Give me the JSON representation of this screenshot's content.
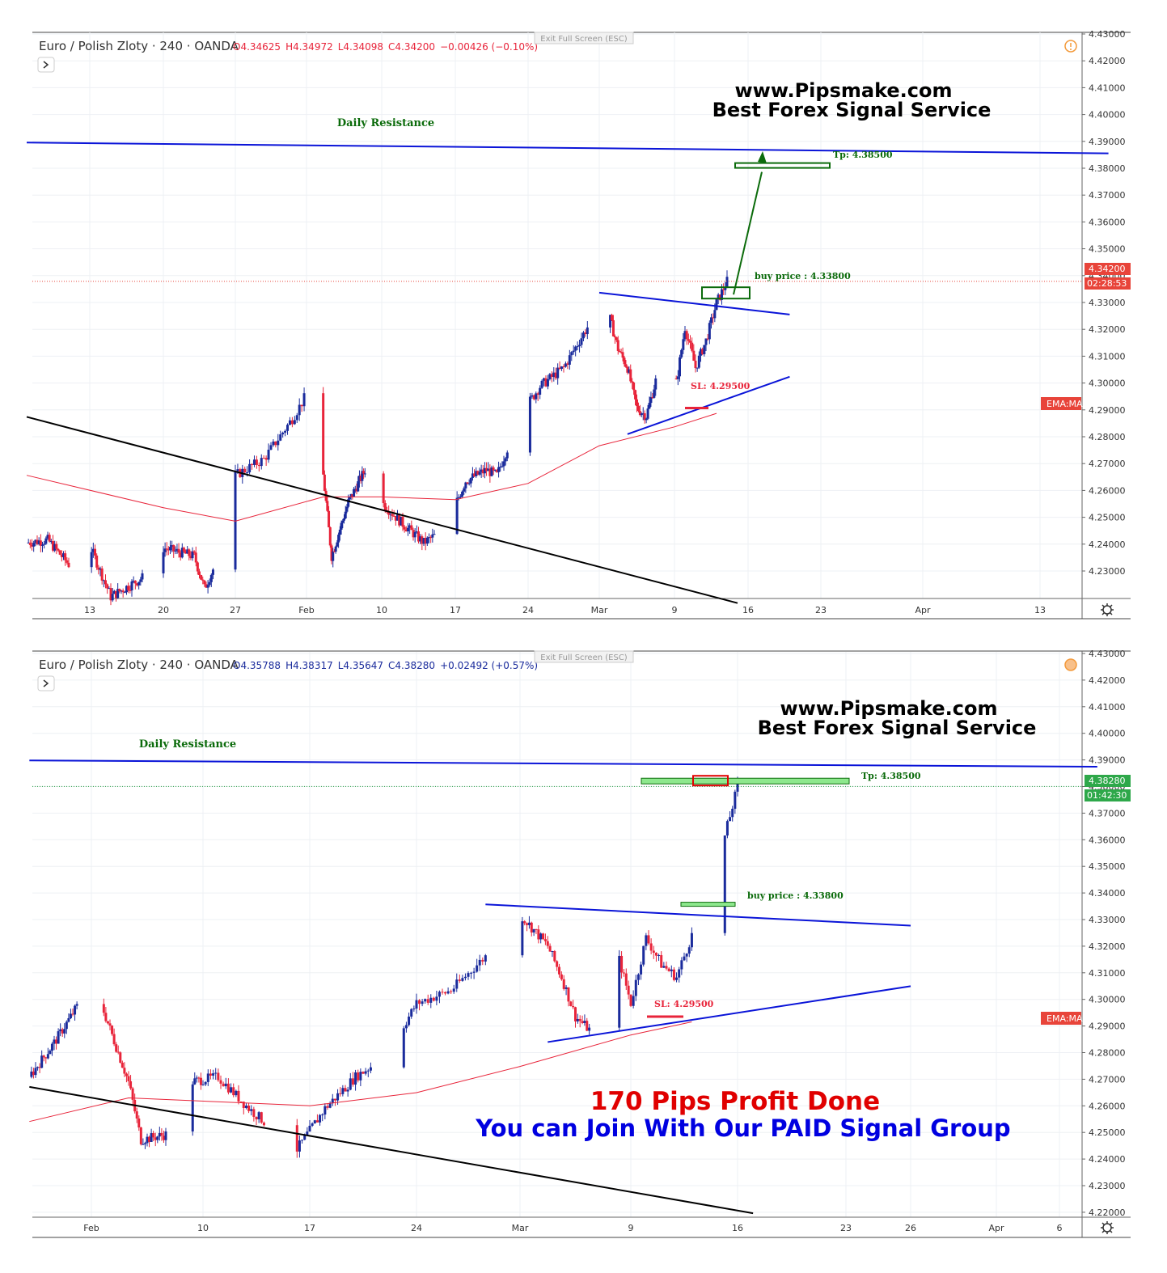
{
  "chart_data": [
    {
      "type": "candlestick",
      "symbol": "Euro / Polish Zloty · 240 · OANDA",
      "ohlc_text": {
        "open": "O4.34625",
        "high": "H4.34972",
        "low": "L4.34098",
        "close": "C4.34200",
        "change": "−0.00426 (−0.10%)"
      },
      "exit_fullscreen_label": "Exit Full Screen (ESC)",
      "brand_line1": "www.Pipsmake.com",
      "brand_line2": "Best Forex Signal Service",
      "daily_resistance_label": "Daily Resistance",
      "tp_label": "Tp: 4.38500",
      "buy_label": "buy price : 4.33800",
      "sl_label": "SL: 4.29500",
      "current_price": "4.34200",
      "countdown": "02:28:53",
      "ema_label": "EMA:MA",
      "y_axis_ticks": [
        "4.43000",
        "4.42000",
        "4.41000",
        "4.40000",
        "4.39000",
        "4.38000",
        "4.37000",
        "4.36000",
        "4.35000",
        "4.34000",
        "4.33000",
        "4.32000",
        "4.31000",
        "4.30000",
        "4.29000",
        "4.28000",
        "4.27000",
        "4.26000",
        "4.25000",
        "4.24000",
        "4.23000"
      ],
      "x_axis_ticks": [
        "13",
        "20",
        "27",
        "Feb",
        "10",
        "17",
        "24",
        "Mar",
        "9",
        "16",
        "23",
        "Apr",
        "13"
      ],
      "ylim": [
        4.2243,
        4.4338
      ],
      "price_path": [
        {
          "date": "Jan 7",
          "price": 4.245
        },
        {
          "date": "Jan 9",
          "price": 4.246
        },
        {
          "date": "Jan 11",
          "price": 4.237
        },
        {
          "date": "Jan 13",
          "price": 4.244
        },
        {
          "date": "Jan 15",
          "price": 4.225
        },
        {
          "date": "Jan 18",
          "price": 4.232
        },
        {
          "date": "Jan 20",
          "price": 4.243
        },
        {
          "date": "Jan 23",
          "price": 4.24
        },
        {
          "date": "Jan 24",
          "price": 4.228
        },
        {
          "date": "Jan 26",
          "price": 4.245
        },
        {
          "date": "Jan 27",
          "price": 4.27
        },
        {
          "date": "Jan 29",
          "price": 4.276
        },
        {
          "date": "Jan 31",
          "price": 4.291
        },
        {
          "date": "Feb 1",
          "price": 4.3
        },
        {
          "date": "Feb 2",
          "price": 4.298
        },
        {
          "date": "Feb 3",
          "price": 4.27
        },
        {
          "date": "Feb 4",
          "price": 4.24
        },
        {
          "date": "Feb 6",
          "price": 4.26
        },
        {
          "date": "Feb 8",
          "price": 4.272
        },
        {
          "date": "Feb 10",
          "price": 4.26
        },
        {
          "date": "Feb 12",
          "price": 4.252
        },
        {
          "date": "Feb 14",
          "price": 4.245
        },
        {
          "date": "Feb 16",
          "price": 4.25
        },
        {
          "date": "Feb 18",
          "price": 4.268
        },
        {
          "date": "Feb 20",
          "price": 4.272
        },
        {
          "date": "Feb 21",
          "price": 4.27
        },
        {
          "date": "Feb 23",
          "price": 4.29
        },
        {
          "date": "Feb 25",
          "price": 4.303
        },
        {
          "date": "Feb 27",
          "price": 4.31
        },
        {
          "date": "Feb 29",
          "price": 4.325
        },
        {
          "date": "Mar 2",
          "price": 4.33
        },
        {
          "date": "Mar 3",
          "price": 4.317
        },
        {
          "date": "Mar 4",
          "price": 4.31
        },
        {
          "date": "Mar 5",
          "price": 4.295
        },
        {
          "date": "Mar 6",
          "price": 4.292
        },
        {
          "date": "Mar 7",
          "price": 4.305
        },
        {
          "date": "Mar 8",
          "price": 4.315
        },
        {
          "date": "Mar 9",
          "price": 4.3
        },
        {
          "date": "Mar 10",
          "price": 4.325
        },
        {
          "date": "Mar 11",
          "price": 4.31
        },
        {
          "date": "Mar 12",
          "price": 4.32
        },
        {
          "date": "Mar 13",
          "price": 4.334
        },
        {
          "date": "Mar 14",
          "price": 4.342
        }
      ],
      "ema": [
        {
          "date": "Jan 7",
          "value": 4.27
        },
        {
          "date": "Jan 20",
          "value": 4.258
        },
        {
          "date": "Jan 27",
          "value": 4.253
        },
        {
          "date": "Feb 3",
          "value": 4.262
        },
        {
          "date": "Feb 10",
          "value": 4.262
        },
        {
          "date": "Feb 17",
          "value": 4.261
        },
        {
          "date": "Feb 24",
          "value": 4.267
        },
        {
          "date": "Mar 1",
          "value": 4.281
        },
        {
          "date": "Mar 9",
          "value": 4.288
        },
        {
          "date": "Mar 13",
          "value": 4.293
        }
      ],
      "lines": {
        "daily_resistance": [
          {
            "date": "Jan 7",
            "price": 4.3935
          },
          {
            "date": "Apr 20",
            "price": 4.3895
          }
        ],
        "triangle_upper": [
          {
            "date": "Mar 1",
            "price": 4.3378
          },
          {
            "date": "Mar 20",
            "price": 4.3297
          }
        ],
        "triangle_lower": [
          {
            "date": "Mar 4",
            "price": 4.2853
          },
          {
            "date": "Mar 20",
            "price": 4.3066
          }
        ],
        "long_downtrend": [
          {
            "date": "Jan 7",
            "price": 4.2917
          },
          {
            "date": "Mar 15",
            "price": 4.2226
          }
        ]
      },
      "levels": {
        "tp": 4.385,
        "buy": 4.338,
        "sl": 4.295,
        "current": 4.342
      }
    },
    {
      "type": "candlestick",
      "symbol": "Euro / Polish Zloty · 240 · OANDA",
      "ohlc_text": {
        "open": "O4.35788",
        "high": "H4.38317",
        "low": "L4.35647",
        "close": "C4.38280",
        "change": "+0.02492 (+0.57%)"
      },
      "exit_fullscreen_label": "Exit Full Screen (ESC)",
      "brand_line1": "www.Pipsmake.com",
      "brand_line2": "Best Forex Signal Service",
      "daily_resistance_label": "Daily Resistance",
      "tp_label": "Tp: 4.38500",
      "buy_label": "buy price : 4.33800",
      "sl_label": "SL: 4.29500",
      "current_price": "4.38280",
      "countdown": "01:42:30",
      "ema_label": "EMA:MA",
      "promo_line1": "170 Pips Profit Done",
      "promo_line2": "You can Join With Our PAID Signal Group",
      "y_axis_ticks": [
        "4.43000",
        "4.42000",
        "4.41000",
        "4.40000",
        "4.39000",
        "4.38000",
        "4.37000",
        "4.36000",
        "4.35000",
        "4.34000",
        "4.33000",
        "4.32000",
        "4.31000",
        "4.30000",
        "4.29000",
        "4.28000",
        "4.27000",
        "4.26000",
        "4.25000",
        "4.24000",
        "4.23000",
        "4.22000"
      ],
      "x_axis_ticks": [
        "Feb",
        "10",
        "17",
        "24",
        "Mar",
        "9",
        "16",
        "23",
        "26",
        "Apr",
        "6"
      ],
      "ylim": [
        4.2185,
        4.4335
      ],
      "price_path": [
        {
          "date": "Jan 27",
          "price": 4.272
        },
        {
          "date": "Jan 29",
          "price": 4.285
        },
        {
          "date": "Jan 31",
          "price": 4.3
        },
        {
          "date": "Feb 2",
          "price": 4.297
        },
        {
          "date": "Feb 4",
          "price": 4.27
        },
        {
          "date": "Feb 5",
          "price": 4.248
        },
        {
          "date": "Feb 7",
          "price": 4.25
        },
        {
          "date": "Feb 9",
          "price": 4.27
        },
        {
          "date": "Feb 11",
          "price": 4.272
        },
        {
          "date": "Feb 13",
          "price": 4.26
        },
        {
          "date": "Feb 15",
          "price": 4.25
        },
        {
          "date": "Feb 16",
          "price": 4.243
        },
        {
          "date": "Feb 18",
          "price": 4.26
        },
        {
          "date": "Feb 20",
          "price": 4.272
        },
        {
          "date": "Feb 22",
          "price": 4.28
        },
        {
          "date": "Feb 24",
          "price": 4.3
        },
        {
          "date": "Feb 26",
          "price": 4.305
        },
        {
          "date": "Feb 28",
          "price": 4.318
        },
        {
          "date": "Mar 1",
          "price": 4.334
        },
        {
          "date": "Mar 3",
          "price": 4.322
        },
        {
          "date": "Mar 4",
          "price": 4.31
        },
        {
          "date": "Mar 5",
          "price": 4.295
        },
        {
          "date": "Mar 6",
          "price": 4.29
        },
        {
          "date": "Mar 7",
          "price": 4.305
        },
        {
          "date": "Mar 8",
          "price": 4.32
        },
        {
          "date": "Mar 9",
          "price": 4.3
        },
        {
          "date": "Mar 10",
          "price": 4.325
        },
        {
          "date": "Mar 11",
          "price": 4.315
        },
        {
          "date": "Mar 12",
          "price": 4.31
        },
        {
          "date": "Mar 13",
          "price": 4.326
        },
        {
          "date": "Mar 14",
          "price": 4.34
        },
        {
          "date": "Mar 15",
          "price": 4.36
        },
        {
          "date": "Mar 16",
          "price": 4.3828
        }
      ],
      "ema": [
        {
          "date": "Jan 27",
          "value": 4.255
        },
        {
          "date": "Feb 4",
          "value": 4.264
        },
        {
          "date": "Feb 17",
          "value": 4.261
        },
        {
          "date": "Feb 24",
          "value": 4.266
        },
        {
          "date": "Mar 1",
          "value": 4.276
        },
        {
          "date": "Mar 9",
          "value": 4.288
        },
        {
          "date": "Mar 13",
          "value": 4.293
        }
      ],
      "lines": {
        "daily_resistance": [
          {
            "date": "Jan 27",
            "price": 4.3927
          },
          {
            "date": "Apr 9",
            "price": 4.3903
          }
        ],
        "triangle_upper": [
          {
            "date": "Feb 28",
            "price": 4.3378
          },
          {
            "date": "Mar 26",
            "price": 4.3297
          }
        ],
        "triangle_lower": [
          {
            "date": "Mar 3",
            "price": 4.2853
          },
          {
            "date": "Mar 26",
            "price": 4.3066
          }
        ],
        "long_downtrend": [
          {
            "date": "Jan 27",
            "price": 4.2682
          },
          {
            "date": "Mar 17",
            "price": 4.22
          }
        ]
      },
      "levels": {
        "tp": 4.385,
        "buy": 4.338,
        "sl": 4.295,
        "current": 4.3828
      }
    }
  ],
  "colors": {
    "bull_candle": "#1a2b9c",
    "bear_candle": "#e8243a",
    "ema": "#e8243a",
    "trend_blue": "#0a14d8",
    "trend_black": "#000000",
    "target_green": "#0b6b0b",
    "fill_green": "#8de88d",
    "badge_red": "#e8443a",
    "badge_green": "#2ea84a"
  },
  "icons": {
    "expand": "chevron-right-icon",
    "alert": "alert-clock-icon",
    "settings": "gear-icon"
  }
}
